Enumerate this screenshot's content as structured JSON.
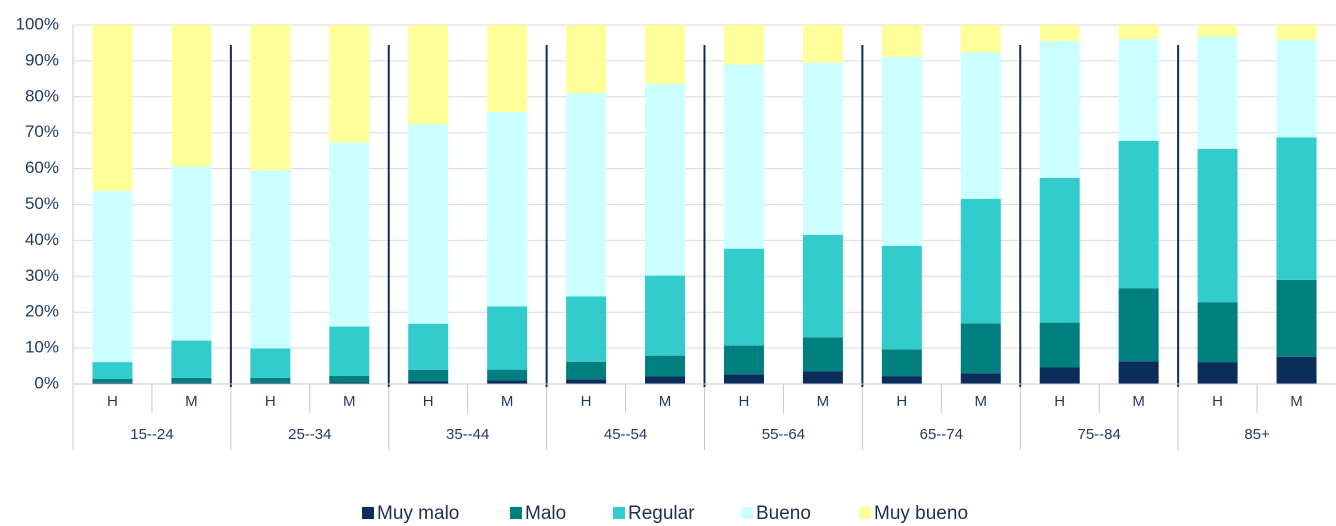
{
  "chart_data": {
    "type": "stacked_bar_100",
    "groups": [
      "15--24",
      "25--34",
      "35--44",
      "45--54",
      "55--64",
      "65--74",
      "75--84",
      "85+"
    ],
    "categories": [
      "H",
      "M",
      "H",
      "M",
      "H",
      "M",
      "H",
      "M",
      "H",
      "M",
      "H",
      "M",
      "H",
      "M",
      "H",
      "M"
    ],
    "series": [
      {
        "name": "Muy malo",
        "color": "#0c2d5c",
        "values": [
          0.3,
          0.3,
          0.3,
          0.4,
          0.7,
          1.0,
          1.3,
          2.1,
          2.7,
          3.5,
          2.2,
          3.0,
          4.6,
          6.3,
          6.1,
          7.6
        ]
      },
      {
        "name": "Malo",
        "color": "#007f7e",
        "values": [
          1.1,
          1.4,
          1.4,
          1.9,
          3.2,
          3.0,
          4.9,
          5.8,
          8.0,
          9.5,
          7.4,
          13.9,
          12.5,
          20.3,
          16.7,
          21.4
        ]
      },
      {
        "name": "Regular",
        "color": "#33cccc",
        "values": [
          4.7,
          10.4,
          8.2,
          13.7,
          12.9,
          17.6,
          18.2,
          22.3,
          27.0,
          28.5,
          28.9,
          34.7,
          40.3,
          41.1,
          42.7,
          39.7
        ]
      },
      {
        "name": "Bueno",
        "color": "#ccffff",
        "values": [
          47.7,
          48.6,
          49.7,
          51.3,
          55.6,
          54.2,
          56.6,
          53.4,
          51.3,
          48.0,
          52.7,
          40.8,
          38.2,
          28.4,
          31.3,
          27.2
        ]
      },
      {
        "name": "Muy bueno",
        "color": "#ffff99",
        "values": [
          46.2,
          39.3,
          40.4,
          32.7,
          27.6,
          24.2,
          19.0,
          16.4,
          11.0,
          10.5,
          8.8,
          7.6,
          4.4,
          3.9,
          3.2,
          4.1
        ]
      }
    ],
    "ylim": [
      0,
      100
    ],
    "yticks": [
      {
        "value": 0,
        "label": "0%"
      },
      {
        "value": 10,
        "label": "10%"
      },
      {
        "value": 20,
        "label": "20%"
      },
      {
        "value": 30,
        "label": "30%"
      },
      {
        "value": 40,
        "label": "40%"
      },
      {
        "value": 50,
        "label": "50%"
      },
      {
        "value": 60,
        "label": "60%"
      },
      {
        "value": 70,
        "label": "70%"
      },
      {
        "value": 80,
        "label": "80%"
      },
      {
        "value": 90,
        "label": "90%"
      },
      {
        "value": 100,
        "label": "100%"
      }
    ],
    "grid": true,
    "legend": "bottom"
  }
}
